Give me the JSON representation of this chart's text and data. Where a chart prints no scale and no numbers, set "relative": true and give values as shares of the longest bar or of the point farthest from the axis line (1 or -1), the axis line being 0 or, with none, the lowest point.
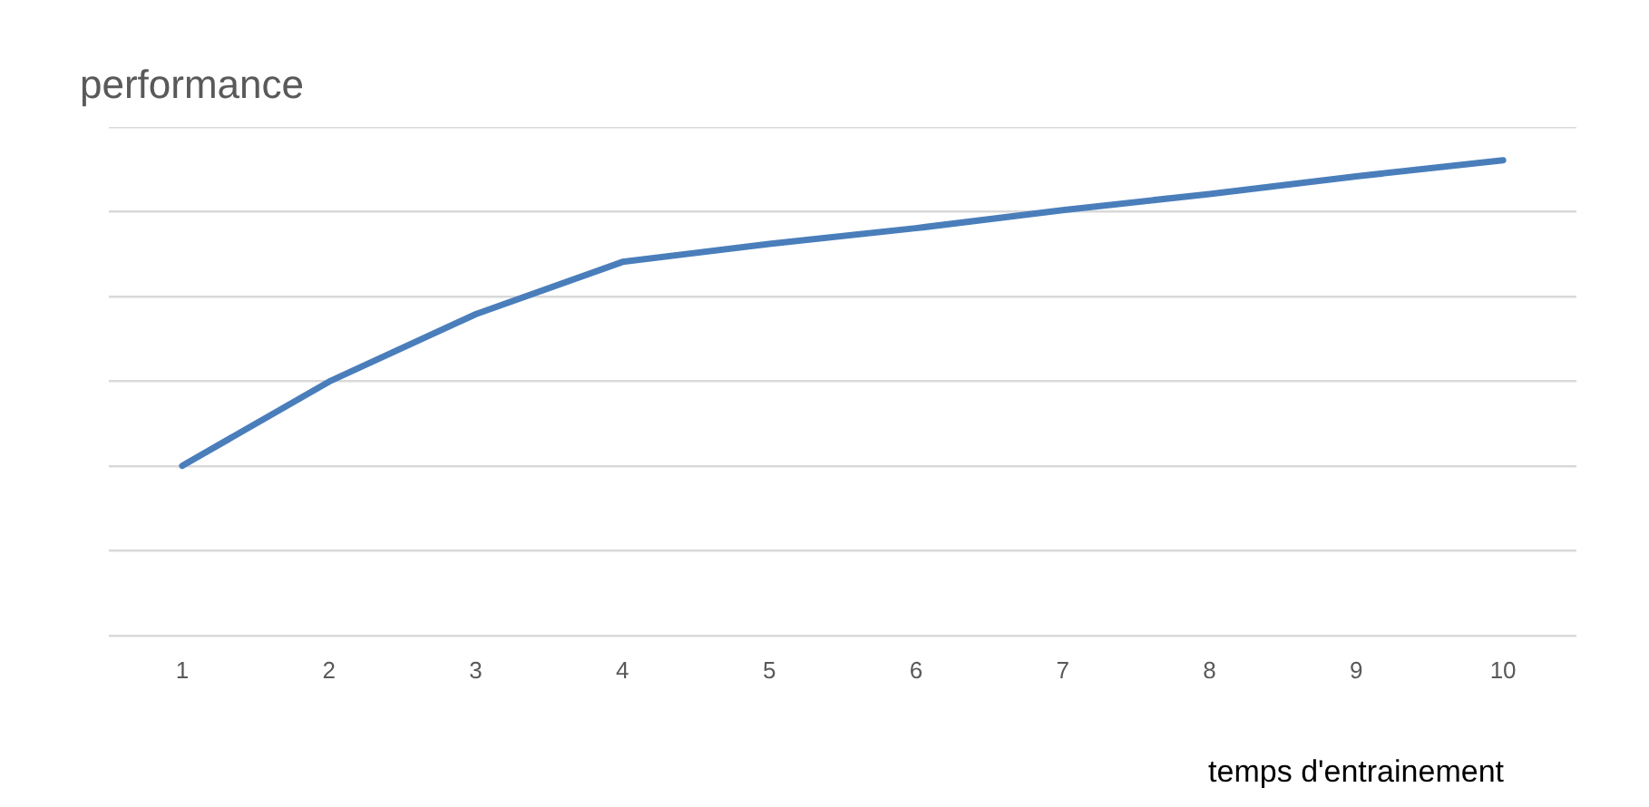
{
  "chart_data": {
    "type": "line",
    "title": "performance",
    "xlabel": "temps d'entrainement",
    "relative": true,
    "grid": "y",
    "legend": false,
    "marker": "none",
    "line_style": "solid",
    "categories": [
      "1",
      "2",
      "3",
      "4",
      "5",
      "6",
      "7",
      "8",
      "9",
      "10"
    ],
    "series": [
      {
        "color": "#4a7ebb",
        "values": [
          0.357,
          0.534,
          0.676,
          0.786,
          0.824,
          0.857,
          0.895,
          0.929,
          0.966,
          1
        ]
      }
    ]
  }
}
